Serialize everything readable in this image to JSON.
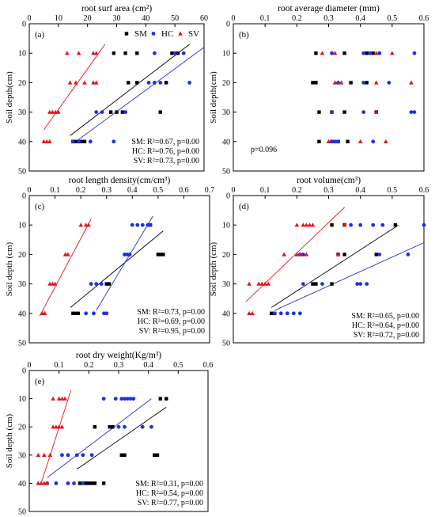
{
  "colors": {
    "SM": "#000000",
    "HC": "#1f2ee8",
    "SV": "#e8111b"
  },
  "chart_data": [
    {
      "panel_label": "(a)",
      "type": "scatter",
      "title": "root surf area (cm²)",
      "xlabel": "",
      "ylabel": "Soil depth(cm)",
      "xlim": [
        0,
        60
      ],
      "ylim": [
        50,
        0
      ],
      "xticks": [
        0,
        10,
        20,
        30,
        40,
        50,
        60
      ],
      "legend": {
        "position": "top-right",
        "entries": [
          "SM",
          "HC",
          "SV"
        ]
      },
      "series": [
        {
          "name": "SM",
          "x": [
            29,
            33,
            37,
            49,
            51,
            34,
            37,
            47,
            28,
            30,
            32,
            45,
            15,
            16,
            17,
            18,
            19
          ],
          "y": [
            10,
            10,
            10,
            10,
            10,
            20,
            20,
            20,
            30,
            30,
            30,
            30,
            40,
            40,
            40,
            40,
            40
          ],
          "fit": [
            [
              14,
              38
            ],
            [
              55,
              7
            ]
          ]
        },
        {
          "name": "HC",
          "x": [
            43,
            50,
            53,
            41,
            43,
            45,
            55,
            23,
            25,
            33,
            15,
            17,
            21,
            29
          ],
          "y": [
            10,
            10,
            10,
            20,
            20,
            20,
            20,
            30,
            30,
            30,
            40,
            40,
            40,
            40
          ],
          "fit": [
            [
              16,
              40
            ],
            [
              60,
              8
            ]
          ]
        },
        {
          "name": "SV",
          "x": [
            13,
            17,
            22,
            23,
            14,
            16,
            19,
            22,
            23,
            7,
            8,
            9,
            10,
            5,
            6,
            7
          ],
          "y": [
            10,
            10,
            10,
            10,
            20,
            20,
            20,
            20,
            20,
            30,
            30,
            30,
            30,
            40,
            40,
            40
          ],
          "fit": [
            [
              5,
              36
            ],
            [
              26,
              7
            ]
          ]
        }
      ],
      "annotations": [
        "SM: R²=0.67, p=0.00",
        "HC: R²=0.76, p=0.00",
        "SV: R²=0.73, p=0.00"
      ]
    },
    {
      "panel_label": "(b)",
      "type": "scatter",
      "title": "root average diameter (mm)",
      "xlabel": "",
      "ylabel": "Soil depth(cm)",
      "xlim": [
        0,
        0.6
      ],
      "ylim": [
        50,
        0
      ],
      "xticks": [
        0,
        0.1,
        0.2,
        0.3,
        0.4,
        0.5,
        0.6
      ],
      "series": [
        {
          "name": "SM",
          "x": [
            0.26,
            0.35,
            0.42,
            0.44,
            0.25,
            0.26,
            0.37,
            0.42,
            0.27,
            0.31,
            0.35,
            0.45,
            0.27,
            0.31,
            0.33,
            0.36
          ],
          "y": [
            10,
            10,
            10,
            10,
            20,
            20,
            20,
            20,
            30,
            30,
            30,
            30,
            40,
            40,
            40,
            40
          ]
        },
        {
          "name": "HC",
          "x": [
            0.31,
            0.41,
            0.43,
            0.46,
            0.57,
            0.33,
            0.41,
            0.49,
            0.31,
            0.41,
            0.56,
            0.57,
            0.31,
            0.32,
            0.33,
            0.44
          ],
          "y": [
            10,
            10,
            10,
            10,
            10,
            20,
            20,
            20,
            30,
            30,
            30,
            30,
            40,
            40,
            40,
            40
          ]
        },
        {
          "name": "SV",
          "x": [
            0.28,
            0.32,
            0.45,
            0.5,
            0.32,
            0.34,
            0.45,
            0.56,
            0.45,
            0.3,
            0.4,
            0.48
          ],
          "y": [
            10,
            10,
            10,
            10,
            20,
            20,
            20,
            20,
            30,
            40,
            40,
            40
          ]
        }
      ],
      "annotations": [
        "p=0.096"
      ]
    },
    {
      "panel_label": "(c)",
      "type": "scatter",
      "title": "root length density(cm/cm³)",
      "xlabel": "",
      "ylabel": "Soil depth (cm)",
      "xlim": [
        0,
        0.7
      ],
      "ylim": [
        50,
        0
      ],
      "xticks": [
        0,
        0.1,
        0.2,
        0.3,
        0.4,
        0.5,
        0.6,
        0.7
      ],
      "series": [
        {
          "name": "SM",
          "x": [
            0.47,
            0.5,
            0.51,
            0.52,
            0.3,
            0.31,
            0.17,
            0.18,
            0.19
          ],
          "y": [
            10,
            20,
            20,
            20,
            30,
            30,
            40,
            40,
            40
          ],
          "fit": [
            [
              0.16,
              38
            ],
            [
              0.52,
              12
            ]
          ]
        },
        {
          "name": "HC",
          "x": [
            0.4,
            0.42,
            0.44,
            0.46,
            0.47,
            0.37,
            0.38,
            0.39,
            0.24,
            0.26,
            0.28,
            0.22,
            0.25,
            0.29,
            0.3
          ],
          "y": [
            10,
            10,
            10,
            10,
            10,
            20,
            20,
            20,
            30,
            30,
            30,
            40,
            40,
            40,
            40
          ],
          "fit": [
            [
              0.26,
              39
            ],
            [
              0.48,
              7
            ]
          ]
        },
        {
          "name": "SV",
          "x": [
            0.2,
            0.22,
            0.23,
            0.14,
            0.15,
            0.08,
            0.09,
            0.1,
            0.05,
            0.06
          ],
          "y": [
            10,
            10,
            10,
            20,
            20,
            30,
            30,
            30,
            40,
            40
          ],
          "fit": [
            [
              0.04,
              41
            ],
            [
              0.24,
              8
            ]
          ]
        }
      ],
      "annotations": [
        "SM: R²=0.73, p=0.00",
        "HC: R²=0.69, p=0.00",
        "SV: R²=0.95, p=0.00"
      ]
    },
    {
      "panel_label": "(d)",
      "type": "scatter",
      "title": "root volume(cm³)",
      "xlabel": "",
      "ylabel": "Soil depth (cm)",
      "xlim": [
        0,
        0.6
      ],
      "ylim": [
        50,
        0
      ],
      "xticks": [
        0,
        0.1,
        0.2,
        0.3,
        0.4,
        0.5,
        0.6
      ],
      "series": [
        {
          "name": "SM",
          "x": [
            0.31,
            0.35,
            0.51,
            0.33,
            0.35,
            0.45,
            0.25,
            0.26,
            0.31,
            0.12,
            0.13
          ],
          "y": [
            10,
            10,
            10,
            20,
            20,
            20,
            30,
            30,
            30,
            40,
            40
          ],
          "fit": [
            [
              0.12,
              38
            ],
            [
              0.52,
              10
            ]
          ]
        },
        {
          "name": "HC",
          "x": [
            0.37,
            0.4,
            0.44,
            0.47,
            0.6,
            0.21,
            0.22,
            0.46,
            0.55,
            0.22,
            0.28,
            0.39,
            0.4,
            0.42,
            0.13,
            0.15,
            0.17,
            0.19,
            0.21
          ],
          "y": [
            10,
            10,
            10,
            10,
            10,
            20,
            20,
            20,
            20,
            30,
            30,
            30,
            30,
            30,
            40,
            40,
            40,
            40,
            40
          ],
          "fit": [
            [
              0.13,
              39
            ],
            [
              0.6,
              16
            ]
          ]
        },
        {
          "name": "SV",
          "x": [
            0.2,
            0.22,
            0.23,
            0.24,
            0.25,
            0.35,
            0.16,
            0.2,
            0.21,
            0.23,
            0.33,
            0.05,
            0.08,
            0.09,
            0.1,
            0.11,
            0.05,
            0.06
          ],
          "y": [
            10,
            10,
            10,
            10,
            10,
            10,
            20,
            20,
            20,
            20,
            20,
            30,
            30,
            30,
            30,
            30,
            40,
            40
          ],
          "fit": [
            [
              0.04,
              36
            ],
            [
              0.35,
              4
            ]
          ]
        }
      ],
      "annotations": [
        "SM: R²=0.65, p=0.00",
        "HC: R²=0.64, p=0.00",
        "SV: R²=0.72, p=0.00"
      ]
    },
    {
      "panel_label": "(e)",
      "type": "scatter",
      "title": "root dry weight(Kg/m³)",
      "xlabel": "",
      "ylabel": "Soil depth (cm)",
      "xlim": [
        0,
        0.6
      ],
      "ylim": [
        50,
        0
      ],
      "xticks": [
        0,
        0.1,
        0.2,
        0.3,
        0.4,
        0.5,
        0.6
      ],
      "series": [
        {
          "name": "SM",
          "x": [
            0.44,
            0.46,
            0.22,
            0.27,
            0.28,
            0.31,
            0.32,
            0.42,
            0.43,
            0.17,
            0.18,
            0.19,
            0.2,
            0.21,
            0.22,
            0.25
          ],
          "y": [
            10,
            10,
            20,
            20,
            20,
            30,
            30,
            30,
            30,
            40,
            40,
            40,
            40,
            40,
            40,
            40
          ],
          "fit": [
            [
              0.16,
              35
            ],
            [
              0.46,
              13
            ]
          ]
        },
        {
          "name": "HC",
          "x": [
            0.25,
            0.29,
            0.31,
            0.32,
            0.33,
            0.34,
            0.35,
            0.3,
            0.32,
            0.38,
            0.41,
            0.11,
            0.13,
            0.16,
            0.18,
            0.21,
            0.06,
            0.09,
            0.13,
            0.15,
            0.18
          ],
          "y": [
            10,
            10,
            10,
            10,
            10,
            10,
            10,
            20,
            20,
            20,
            20,
            30,
            30,
            30,
            30,
            30,
            40,
            40,
            40,
            40,
            40
          ],
          "fit": [
            [
              0.06,
              38
            ],
            [
              0.41,
              10
            ]
          ]
        },
        {
          "name": "SV",
          "x": [
            0.08,
            0.1,
            0.11,
            0.12,
            0.08,
            0.09,
            0.1,
            0.11,
            0.03,
            0.05,
            0.07,
            0.03,
            0.04,
            0.05,
            0.06
          ],
          "y": [
            10,
            10,
            10,
            10,
            20,
            20,
            20,
            20,
            30,
            30,
            30,
            40,
            40,
            40,
            40
          ],
          "fit": [
            [
              0.04,
              40
            ],
            [
              0.14,
              7
            ]
          ]
        }
      ],
      "annotations": [
        "SM: R²=0.31, p=0.00",
        "HC: R²=0.54, p=0.00",
        "SV: R²=0.77, p=0.00"
      ]
    }
  ]
}
